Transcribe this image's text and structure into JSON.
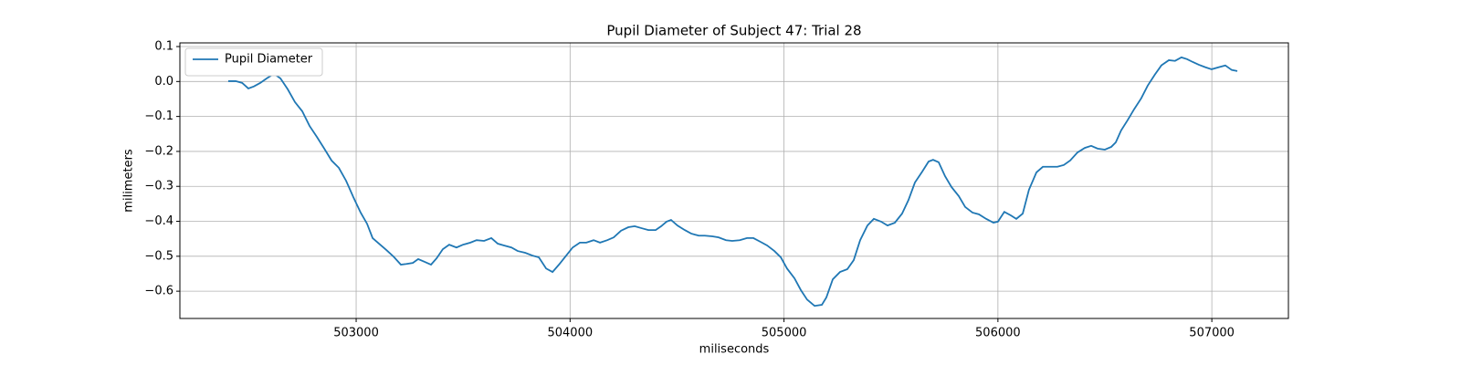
{
  "chart_data": {
    "type": "line",
    "title": "Pupil Diameter of Subject 47: Trial 28",
    "xlabel": "miliseconds",
    "ylabel": "milimeters",
    "x": [
      502402,
      502437,
      502467,
      502496,
      502522,
      502552,
      502582,
      502616,
      502646,
      502680,
      502714,
      502748,
      502782,
      502816,
      502851,
      502885,
      502919,
      502953,
      502987,
      503021,
      503051,
      503077,
      503107,
      503141,
      503175,
      503209,
      503235,
      503265,
      503290,
      503320,
      503350,
      503376,
      503405,
      503435,
      503469,
      503499,
      503534,
      503563,
      503598,
      503632,
      503662,
      503691,
      503726,
      503755,
      503790,
      503824,
      503854,
      503888,
      503918,
      503948,
      503982,
      504012,
      504046,
      504076,
      504110,
      504140,
      504174,
      504204,
      504238,
      504272,
      504302,
      504336,
      504366,
      504400,
      504426,
      504451,
      504472,
      504502,
      504536,
      504566,
      504601,
      504630,
      504665,
      504694,
      504729,
      504758,
      504793,
      504827,
      504857,
      504891,
      504921,
      504955,
      504985,
      505014,
      505049,
      505079,
      505108,
      505143,
      505177,
      505198,
      505228,
      505262,
      505296,
      505326,
      505356,
      505390,
      505420,
      505454,
      505484,
      505518,
      505552,
      505582,
      505612,
      505646,
      505676,
      505697,
      505723,
      505753,
      505783,
      505817,
      505847,
      505881,
      505911,
      505945,
      505979,
      506000,
      506030,
      506060,
      506086,
      506116,
      506145,
      506180,
      506210,
      506244,
      506278,
      506308,
      506338,
      506372,
      506406,
      506436,
      506466,
      506500,
      506530,
      506551,
      506576,
      506606,
      506636,
      506670,
      506700,
      506734,
      506764,
      506799,
      506828,
      506858,
      506884,
      506910,
      506939,
      506969,
      506999,
      507033,
      507063,
      507093,
      507119
    ],
    "series": [
      {
        "name": "Pupil Diameter",
        "color": "#1f77b4",
        "values": [
          0.001,
          0.001,
          -0.004,
          -0.02,
          -0.014,
          -0.004,
          0.009,
          0.022,
          0.009,
          -0.022,
          -0.059,
          -0.085,
          -0.127,
          -0.158,
          -0.192,
          -0.226,
          -0.247,
          -0.284,
          -0.331,
          -0.375,
          -0.407,
          -0.448,
          -0.464,
          -0.482,
          -0.501,
          -0.524,
          -0.522,
          -0.519,
          -0.508,
          -0.516,
          -0.524,
          -0.506,
          -0.48,
          -0.467,
          -0.475,
          -0.467,
          -0.461,
          -0.454,
          -0.456,
          -0.448,
          -0.464,
          -0.469,
          -0.475,
          -0.485,
          -0.49,
          -0.498,
          -0.503,
          -0.535,
          -0.545,
          -0.524,
          -0.498,
          -0.475,
          -0.461,
          -0.461,
          -0.454,
          -0.461,
          -0.454,
          -0.446,
          -0.427,
          -0.417,
          -0.414,
          -0.42,
          -0.425,
          -0.425,
          -0.414,
          -0.401,
          -0.396,
          -0.412,
          -0.425,
          -0.435,
          -0.441,
          -0.441,
          -0.443,
          -0.446,
          -0.454,
          -0.456,
          -0.454,
          -0.448,
          -0.448,
          -0.459,
          -0.469,
          -0.485,
          -0.503,
          -0.535,
          -0.563,
          -0.597,
          -0.624,
          -0.642,
          -0.639,
          -0.618,
          -0.566,
          -0.545,
          -0.537,
          -0.511,
          -0.454,
          -0.412,
          -0.393,
          -0.401,
          -0.412,
          -0.404,
          -0.378,
          -0.339,
          -0.289,
          -0.258,
          -0.229,
          -0.224,
          -0.231,
          -0.271,
          -0.302,
          -0.328,
          -0.359,
          -0.375,
          -0.38,
          -0.393,
          -0.404,
          -0.401,
          -0.373,
          -0.383,
          -0.393,
          -0.378,
          -0.31,
          -0.26,
          -0.244,
          -0.244,
          -0.244,
          -0.239,
          -0.226,
          -0.203,
          -0.19,
          -0.184,
          -0.192,
          -0.195,
          -0.187,
          -0.174,
          -0.14,
          -0.111,
          -0.08,
          -0.048,
          -0.012,
          0.02,
          0.046,
          0.061,
          0.059,
          0.069,
          0.064,
          0.056,
          0.048,
          0.041,
          0.035,
          0.041,
          0.046,
          0.033,
          0.03
        ]
      }
    ],
    "xlim": [
      502176,
      507358
    ],
    "ylim": [
      -0.678,
      0.1105
    ],
    "xticks": [
      503000,
      504000,
      505000,
      506000,
      507000
    ],
    "yticks": [
      0.1,
      {
        "value": 0,
        "label": "0.0"
      },
      {
        "value": -0.1,
        "label": "−0.1"
      },
      {
        "value": -0.2,
        "label": "−0.2"
      },
      {
        "value": -0.3,
        "label": "−0.3"
      },
      {
        "value": -0.4,
        "label": "−0.4"
      },
      {
        "value": -0.5,
        "label": "−0.5"
      },
      {
        "value": -0.6,
        "label": "−0.6"
      }
    ],
    "grid": true,
    "legend": "upper-left"
  }
}
